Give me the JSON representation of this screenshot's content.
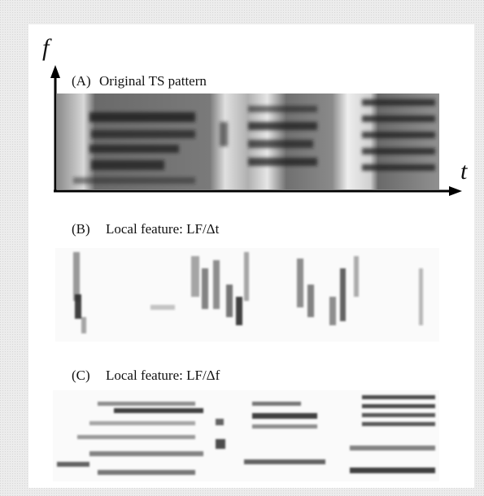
{
  "axes": {
    "y_label": "f",
    "x_label": "t"
  },
  "panels": [
    {
      "label": "(A)",
      "title": "Original TS pattern"
    },
    {
      "label": "(B)",
      "title": "Local feature: LF/Δt"
    },
    {
      "label": "(C)",
      "title": "Local feature: LF/Δf"
    }
  ]
}
